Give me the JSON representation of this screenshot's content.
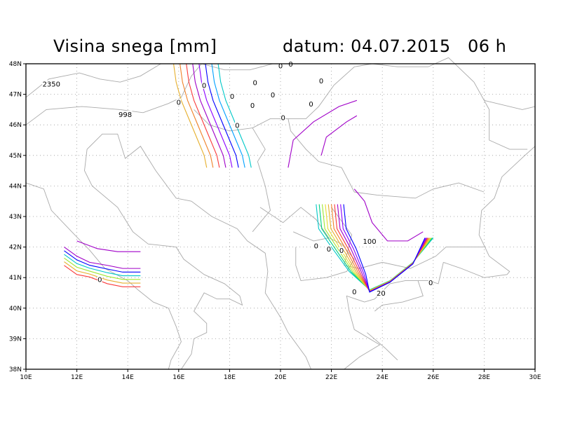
{
  "header": {
    "title": "Visina snega [mm]",
    "date_prefix": "datum:",
    "date": "04.07.2015",
    "hour": "06 h"
  },
  "map": {
    "lon_range": [
      10,
      30
    ],
    "lat_range": [
      38,
      48
    ],
    "x_ticks": [
      "10E",
      "12E",
      "14E",
      "16E",
      "18E",
      "20E",
      "22E",
      "24E",
      "26E",
      "28E",
      "30E"
    ],
    "y_ticks": [
      "38N",
      "39N",
      "40N",
      "41N",
      "42N",
      "43N",
      "44N",
      "45N",
      "46N",
      "47N",
      "48N"
    ],
    "grid": "dotted",
    "contour_colors": [
      "#a000c8",
      "#8c00ff",
      "#0000ff",
      "#00a0ff",
      "#00c8c8",
      "#00d080",
      "#a0e632",
      "#e6dc32",
      "#e6af2d",
      "#f08228",
      "#fa3c3c"
    ],
    "contour_labels": [
      {
        "text": "2350",
        "lon": 11.0,
        "lat": 47.3
      },
      {
        "text": "998",
        "lon": 13.9,
        "lat": 46.3
      },
      {
        "text": "0",
        "lon": 20.0,
        "lat": 47.9
      },
      {
        "text": "0",
        "lon": 20.4,
        "lat": 47.95
      },
      {
        "text": "0",
        "lon": 21.6,
        "lat": 47.4
      },
      {
        "text": "0",
        "lon": 19.0,
        "lat": 47.35
      },
      {
        "text": "0",
        "lon": 17.0,
        "lat": 47.25
      },
      {
        "text": "0",
        "lon": 18.1,
        "lat": 46.9
      },
      {
        "text": "0",
        "lon": 19.7,
        "lat": 46.95
      },
      {
        "text": "0",
        "lon": 16.0,
        "lat": 46.7
      },
      {
        "text": "0",
        "lon": 18.9,
        "lat": 46.6
      },
      {
        "text": "0",
        "lon": 21.2,
        "lat": 46.65
      },
      {
        "text": "0",
        "lon": 20.1,
        "lat": 46.2
      },
      {
        "text": "0",
        "lon": 18.3,
        "lat": 45.95
      },
      {
        "text": "0",
        "lon": 21.4,
        "lat": 42.0
      },
      {
        "text": "0",
        "lon": 21.9,
        "lat": 41.9
      },
      {
        "text": "0",
        "lon": 22.4,
        "lat": 41.85
      },
      {
        "text": "100",
        "lon": 23.5,
        "lat": 42.15
      },
      {
        "text": "0",
        "lon": 12.9,
        "lat": 40.9
      },
      {
        "text": "0",
        "lon": 22.9,
        "lat": 40.5
      },
      {
        "text": "20",
        "lon": 23.95,
        "lat": 40.45
      },
      {
        "text": "0",
        "lon": 25.9,
        "lat": 40.8
      }
    ]
  }
}
